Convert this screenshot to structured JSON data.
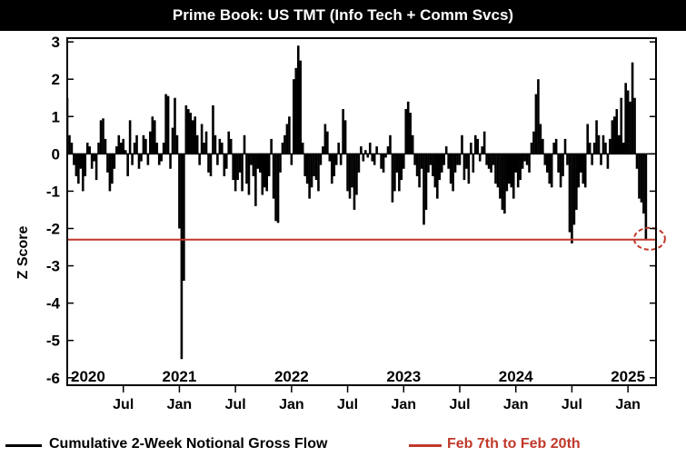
{
  "chart_data": {
    "type": "bar",
    "title": "Prime Book: US TMT (Info Tech + Comm Svcs)",
    "ylabel": "Z Score",
    "ylim": [
      -6.2,
      3.1
    ],
    "yticks": [
      3,
      2,
      1,
      0,
      -1,
      -2,
      -3,
      -4,
      -5,
      -6
    ],
    "x_range": [
      2020.0,
      2025.25
    ],
    "year_ticks": [
      {
        "x": 2020.0,
        "label": "2020"
      },
      {
        "x": 2021.0,
        "label": "2021"
      },
      {
        "x": 2022.0,
        "label": "2022"
      },
      {
        "x": 2023.0,
        "label": "2023"
      },
      {
        "x": 2024.0,
        "label": "2024"
      },
      {
        "x": 2025.0,
        "label": "2025"
      }
    ],
    "month_ticks": [
      {
        "x": 2020.5,
        "label": "Jul"
      },
      {
        "x": 2021.0,
        "label": "Jan"
      },
      {
        "x": 2021.5,
        "label": "Jul"
      },
      {
        "x": 2022.0,
        "label": "Jan"
      },
      {
        "x": 2022.5,
        "label": "Jul"
      },
      {
        "x": 2023.0,
        "label": "Jan"
      },
      {
        "x": 2023.5,
        "label": "Jul"
      },
      {
        "x": 2024.0,
        "label": "Jan"
      },
      {
        "x": 2024.5,
        "label": "Jul"
      },
      {
        "x": 2025.0,
        "label": "Jan"
      }
    ],
    "series": [
      {
        "name": "Cumulative 2-Week Notional Gross Flow",
        "color": "#000000",
        "points": [
          [
            2020.0,
            1.5
          ],
          [
            2020.02,
            0.5
          ],
          [
            2020.04,
            0.3
          ],
          [
            2020.06,
            -0.3
          ],
          [
            2020.08,
            -0.6
          ],
          [
            2020.1,
            -0.8
          ],
          [
            2020.12,
            -0.4
          ],
          [
            2020.14,
            -1.0
          ],
          [
            2020.16,
            -0.6
          ],
          [
            2020.18,
            0.3
          ],
          [
            2020.2,
            0.2
          ],
          [
            2020.22,
            -0.4
          ],
          [
            2020.24,
            -0.2
          ],
          [
            2020.26,
            -0.7
          ],
          [
            2020.28,
            0.3
          ],
          [
            2020.3,
            0.9
          ],
          [
            2020.32,
            0.95
          ],
          [
            2020.34,
            0.4
          ],
          [
            2020.36,
            -0.5
          ],
          [
            2020.38,
            -1.0
          ],
          [
            2020.4,
            -0.8
          ],
          [
            2020.42,
            -0.4
          ],
          [
            2020.44,
            0.2
          ],
          [
            2020.46,
            0.5
          ],
          [
            2020.48,
            0.3
          ],
          [
            2020.5,
            0.4
          ],
          [
            2020.52,
            0.1
          ],
          [
            2020.54,
            -0.6
          ],
          [
            2020.56,
            0.9
          ],
          [
            2020.58,
            -0.3
          ],
          [
            2020.6,
            0.3
          ],
          [
            2020.62,
            0.5
          ],
          [
            2020.64,
            -0.4
          ],
          [
            2020.66,
            -0.2
          ],
          [
            2020.68,
            0.5
          ],
          [
            2020.7,
            0.4
          ],
          [
            2020.72,
            -0.3
          ],
          [
            2020.74,
            0.6
          ],
          [
            2020.76,
            1.0
          ],
          [
            2020.78,
            0.9
          ],
          [
            2020.8,
            0.3
          ],
          [
            2020.82,
            -0.3
          ],
          [
            2020.84,
            -0.2
          ],
          [
            2020.86,
            0.3
          ],
          [
            2020.88,
            1.6
          ],
          [
            2020.9,
            1.55
          ],
          [
            2020.92,
            -0.4
          ],
          [
            2020.94,
            0.7
          ],
          [
            2020.96,
            1.5
          ],
          [
            2020.98,
            0.5
          ],
          [
            2021.0,
            -2.0
          ],
          [
            2021.02,
            -5.5
          ],
          [
            2021.04,
            -3.4
          ],
          [
            2021.06,
            1.3
          ],
          [
            2021.08,
            1.2
          ],
          [
            2021.1,
            1.1
          ],
          [
            2021.12,
            0.9
          ],
          [
            2021.14,
            1.0
          ],
          [
            2021.16,
            0.5
          ],
          [
            2021.18,
            -0.3
          ],
          [
            2021.2,
            0.8
          ],
          [
            2021.22,
            0.3
          ],
          [
            2021.24,
            0.6
          ],
          [
            2021.26,
            -0.5
          ],
          [
            2021.28,
            -0.6
          ],
          [
            2021.3,
            1.3
          ],
          [
            2021.32,
            0.5
          ],
          [
            2021.34,
            -0.3
          ],
          [
            2021.36,
            0.4
          ],
          [
            2021.38,
            0.3
          ],
          [
            2021.4,
            -0.6
          ],
          [
            2021.42,
            -0.4
          ],
          [
            2021.44,
            0.6
          ],
          [
            2021.46,
            0.4
          ],
          [
            2021.48,
            -0.7
          ],
          [
            2021.5,
            -1.0
          ],
          [
            2021.52,
            -0.7
          ],
          [
            2021.54,
            -0.5
          ],
          [
            2021.56,
            -1.0
          ],
          [
            2021.58,
            0.5
          ],
          [
            2021.6,
            -0.8
          ],
          [
            2021.62,
            -1.1
          ],
          [
            2021.64,
            -0.3
          ],
          [
            2021.66,
            -0.6
          ],
          [
            2021.68,
            -1.4
          ],
          [
            2021.7,
            -0.4
          ],
          [
            2021.72,
            -0.5
          ],
          [
            2021.74,
            -1.1
          ],
          [
            2021.76,
            -0.9
          ],
          [
            2021.78,
            -1.0
          ],
          [
            2021.8,
            -0.6
          ],
          [
            2021.82,
            0.4
          ],
          [
            2021.84,
            -1.2
          ],
          [
            2021.86,
            -1.8
          ],
          [
            2021.88,
            -1.85
          ],
          [
            2021.9,
            -0.5
          ],
          [
            2021.92,
            0.3
          ],
          [
            2021.94,
            0.5
          ],
          [
            2021.96,
            0.8
          ],
          [
            2021.98,
            1.0
          ],
          [
            2022.0,
            -0.3
          ],
          [
            2022.02,
            2.0
          ],
          [
            2022.04,
            2.3
          ],
          [
            2022.06,
            2.9
          ],
          [
            2022.08,
            2.5
          ],
          [
            2022.1,
            0.3
          ],
          [
            2022.12,
            -0.6
          ],
          [
            2022.14,
            -0.8
          ],
          [
            2022.16,
            -1.2
          ],
          [
            2022.18,
            -0.9
          ],
          [
            2022.2,
            -0.6
          ],
          [
            2022.22,
            -0.7
          ],
          [
            2022.24,
            -1.0
          ],
          [
            2022.26,
            -0.3
          ],
          [
            2022.28,
            0.2
          ],
          [
            2022.3,
            0.8
          ],
          [
            2022.32,
            0.6
          ],
          [
            2022.34,
            -0.2
          ],
          [
            2022.36,
            -0.8
          ],
          [
            2022.38,
            -0.6
          ],
          [
            2022.4,
            -0.3
          ],
          [
            2022.42,
            0.3
          ],
          [
            2022.44,
            -0.3
          ],
          [
            2022.46,
            1.2
          ],
          [
            2022.48,
            0.9
          ],
          [
            2022.5,
            -1.0
          ],
          [
            2022.52,
            -1.2
          ],
          [
            2022.54,
            -0.9
          ],
          [
            2022.56,
            -1.5
          ],
          [
            2022.58,
            -1.1
          ],
          [
            2022.6,
            -0.5
          ],
          [
            2022.62,
            0.2
          ],
          [
            2022.64,
            -0.2
          ],
          [
            2022.66,
            0.1
          ],
          [
            2022.68,
            -0.1
          ],
          [
            2022.7,
            0.3
          ],
          [
            2022.72,
            -0.2
          ],
          [
            2022.74,
            -0.3
          ],
          [
            2022.76,
            0.2
          ],
          [
            2022.78,
            0.0
          ],
          [
            2022.8,
            -0.4
          ],
          [
            2022.82,
            -0.5
          ],
          [
            2022.84,
            -0.1
          ],
          [
            2022.86,
            0.2
          ],
          [
            2022.88,
            0.5
          ],
          [
            2022.9,
            -1.3
          ],
          [
            2022.92,
            -1.0
          ],
          [
            2022.94,
            -0.5
          ],
          [
            2022.96,
            -1.0
          ],
          [
            2022.98,
            -0.7
          ],
          [
            2023.0,
            -0.4
          ],
          [
            2023.02,
            1.2
          ],
          [
            2023.04,
            1.4
          ],
          [
            2023.06,
            1.1
          ],
          [
            2023.08,
            0.5
          ],
          [
            2023.1,
            -0.3
          ],
          [
            2023.12,
            -0.6
          ],
          [
            2023.14,
            -0.9
          ],
          [
            2023.16,
            -0.4
          ],
          [
            2023.18,
            -1.9
          ],
          [
            2023.2,
            -1.5
          ],
          [
            2023.22,
            -0.5
          ],
          [
            2023.24,
            -0.3
          ],
          [
            2023.26,
            -0.6
          ],
          [
            2023.28,
            -0.9
          ],
          [
            2023.3,
            -1.2
          ],
          [
            2023.32,
            -0.7
          ],
          [
            2023.34,
            -0.5
          ],
          [
            2023.36,
            -0.3
          ],
          [
            2023.38,
            0.2
          ],
          [
            2023.4,
            -0.4
          ],
          [
            2023.42,
            -0.8
          ],
          [
            2023.44,
            -1.0
          ],
          [
            2023.46,
            -0.5
          ],
          [
            2023.48,
            -0.3
          ],
          [
            2023.5,
            -0.3
          ],
          [
            2023.52,
            0.5
          ],
          [
            2023.54,
            -0.7
          ],
          [
            2023.56,
            -0.4
          ],
          [
            2023.58,
            -0.8
          ],
          [
            2023.6,
            0.3
          ],
          [
            2023.62,
            -0.5
          ],
          [
            2023.64,
            0.5
          ],
          [
            2023.66,
            0.4
          ],
          [
            2023.68,
            -0.2
          ],
          [
            2023.7,
            0.2
          ],
          [
            2023.72,
            0.6
          ],
          [
            2023.74,
            -0.3
          ],
          [
            2023.76,
            -0.4
          ],
          [
            2023.78,
            -0.5
          ],
          [
            2023.8,
            -0.3
          ],
          [
            2023.82,
            -0.8
          ],
          [
            2023.84,
            -0.9
          ],
          [
            2023.86,
            -1.2
          ],
          [
            2023.88,
            -1.5
          ],
          [
            2023.9,
            -1.6
          ],
          [
            2023.92,
            -1.0
          ],
          [
            2023.94,
            -0.8
          ],
          [
            2023.96,
            -0.9
          ],
          [
            2023.98,
            -1.2
          ],
          [
            2024.0,
            -0.5
          ],
          [
            2024.02,
            -0.9
          ],
          [
            2024.04,
            -0.7
          ],
          [
            2024.06,
            -0.4
          ],
          [
            2024.08,
            -0.2
          ],
          [
            2024.1,
            -0.3
          ],
          [
            2024.12,
            -0.5
          ],
          [
            2024.14,
            0.3
          ],
          [
            2024.16,
            0.6
          ],
          [
            2024.18,
            1.6
          ],
          [
            2024.2,
            2.0
          ],
          [
            2024.22,
            0.8
          ],
          [
            2024.24,
            0.4
          ],
          [
            2024.26,
            -0.3
          ],
          [
            2024.28,
            -0.5
          ],
          [
            2024.3,
            -0.8
          ],
          [
            2024.32,
            -0.9
          ],
          [
            2024.34,
            0.3
          ],
          [
            2024.36,
            0.4
          ],
          [
            2024.38,
            -0.5
          ],
          [
            2024.4,
            -0.9
          ],
          [
            2024.42,
            -0.6
          ],
          [
            2024.44,
            0.4
          ],
          [
            2024.46,
            -0.3
          ],
          [
            2024.48,
            -2.1
          ],
          [
            2024.5,
            -2.4
          ],
          [
            2024.52,
            -1.9
          ],
          [
            2024.54,
            -1.5
          ],
          [
            2024.56,
            -0.9
          ],
          [
            2024.58,
            -0.5
          ],
          [
            2024.6,
            -0.8
          ],
          [
            2024.62,
            -0.9
          ],
          [
            2024.64,
            0.8
          ],
          [
            2024.66,
            0.3
          ],
          [
            2024.68,
            -0.3
          ],
          [
            2024.7,
            0.3
          ],
          [
            2024.72,
            0.9
          ],
          [
            2024.74,
            0.5
          ],
          [
            2024.76,
            -0.3
          ],
          [
            2024.78,
            0.5
          ],
          [
            2024.8,
            0.3
          ],
          [
            2024.82,
            -0.4
          ],
          [
            2024.84,
            0.4
          ],
          [
            2024.86,
            0.9
          ],
          [
            2024.88,
            1.0
          ],
          [
            2024.9,
            1.2
          ],
          [
            2024.92,
            0.5
          ],
          [
            2024.94,
            1.5
          ],
          [
            2024.96,
            0.3
          ],
          [
            2024.98,
            1.9
          ],
          [
            2025.0,
            1.7
          ],
          [
            2025.02,
            1.4
          ],
          [
            2025.04,
            2.45
          ],
          [
            2025.06,
            1.5
          ],
          [
            2025.08,
            -0.4
          ],
          [
            2025.1,
            -1.2
          ],
          [
            2025.12,
            -1.3
          ],
          [
            2025.14,
            -1.6
          ],
          [
            2025.16,
            -2.3
          ]
        ]
      },
      {
        "name": "Feb 7th to Feb 20th",
        "color": "#c0392b",
        "type": "hline",
        "y": -2.3
      }
    ],
    "highlight": {
      "x": 2025.16,
      "y": -2.3,
      "color": "#c0392b"
    },
    "legend_position": "bottom"
  }
}
